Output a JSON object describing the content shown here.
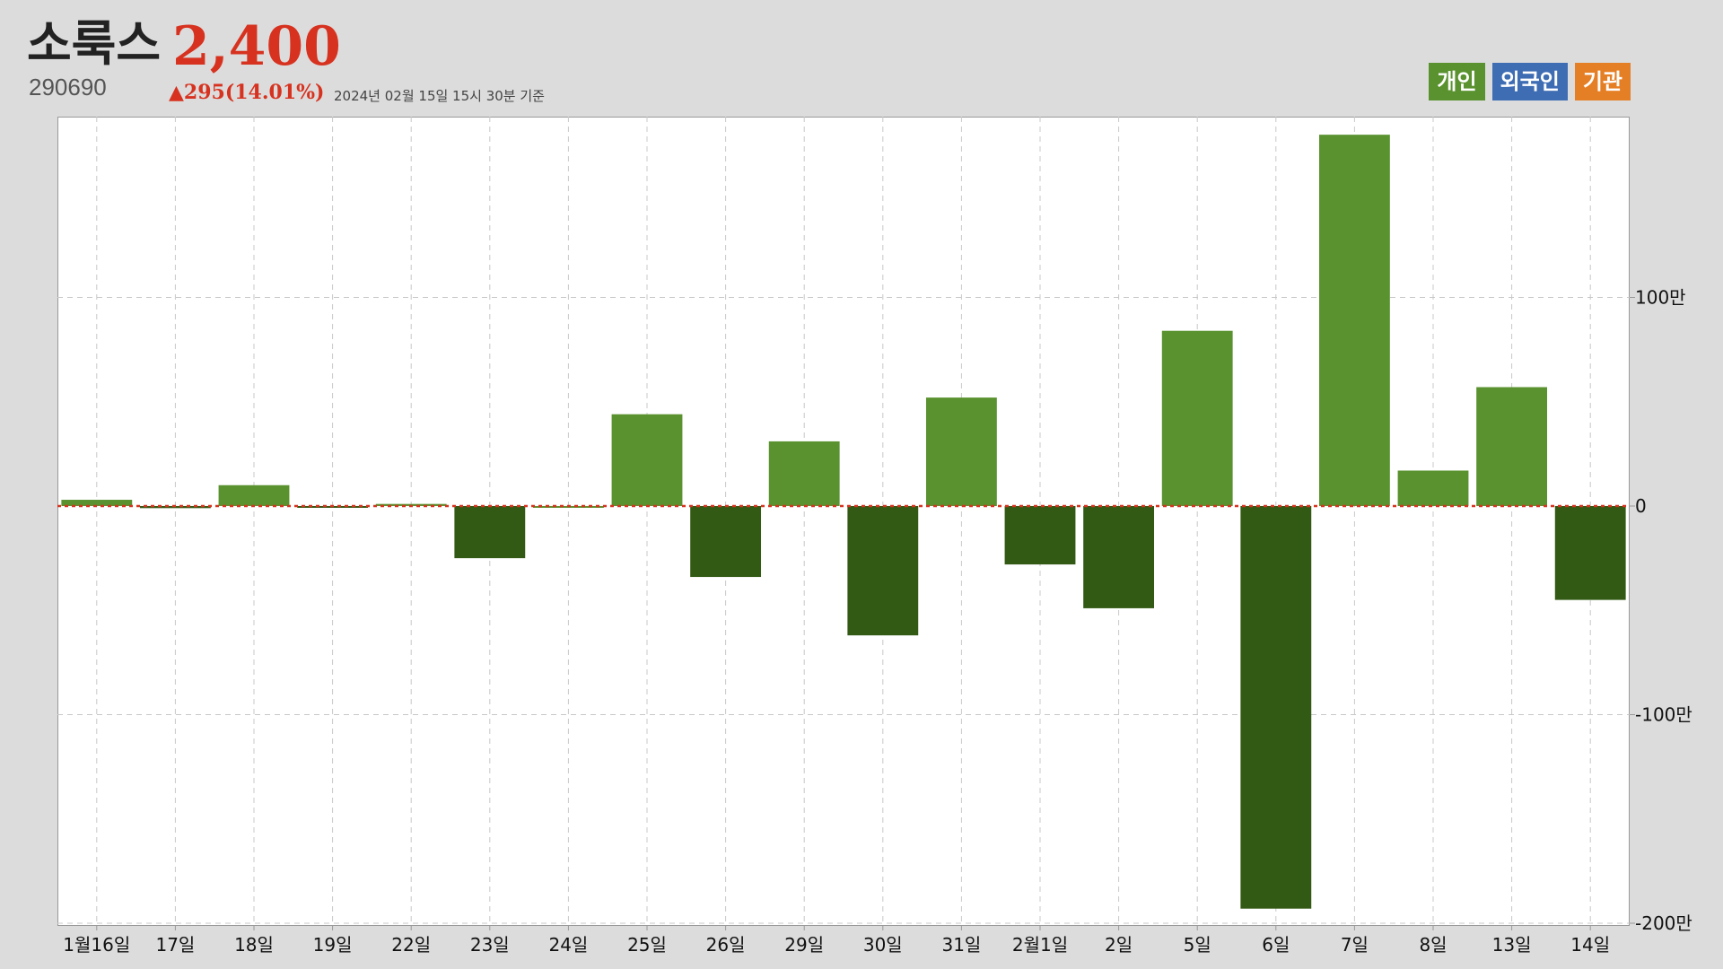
{
  "header": {
    "stock_name": "소룩스",
    "price": "2,400",
    "code": "290690",
    "change": "▲295(14.01%)",
    "date": "2024년 02월 15일 15시 30분 기준"
  },
  "legend": [
    {
      "label": "개인",
      "color": "#5a922f"
    },
    {
      "label": "외국인",
      "color": "#3f6db3"
    },
    {
      "label": "기관",
      "color": "#e57f25"
    }
  ],
  "colors": {
    "positive": "#5a922f",
    "negative": "#335a14",
    "zero_line": "#d7321f",
    "grid": "#c8c8c8"
  },
  "chart_data": {
    "type": "bar",
    "categories": [
      "1월16일",
      "17일",
      "18일",
      "19일",
      "22일",
      "23일",
      "24일",
      "25일",
      "26일",
      "29일",
      "30일",
      "31일",
      "2월1일",
      "2일",
      "5일",
      "6일",
      "7일",
      "8일",
      "13일",
      "14일"
    ],
    "series": [
      {
        "values": [
          30000,
          -10000,
          100000,
          -5000,
          10000,
          -250000,
          0,
          440000,
          -340000,
          310000,
          -620000,
          520000,
          -280000,
          -490000,
          840000,
          -1930000,
          1780000,
          170000,
          570000,
          -450000
        ]
      }
    ],
    "yticks": [
      {
        "value": 1000000,
        "label": "100만"
      },
      {
        "value": 0,
        "label": "0"
      },
      {
        "value": -1000000,
        "label": "-100만"
      },
      {
        "value": -2000000,
        "label": "-200만"
      }
    ],
    "ylim": [
      -2000000,
      1870000
    ],
    "grid": true,
    "legend_position": "top-right"
  }
}
